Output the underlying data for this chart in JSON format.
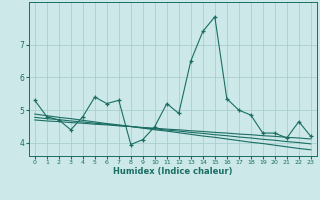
{
  "xlabel": "Humidex (Indice chaleur)",
  "background_color": "#cce8e8",
  "grid_color": "#aacece",
  "line_color": "#1a6e64",
  "x_values": [
    0,
    1,
    2,
    3,
    4,
    5,
    6,
    7,
    8,
    9,
    10,
    11,
    12,
    13,
    14,
    15,
    16,
    17,
    18,
    19,
    20,
    21,
    22,
    23
  ],
  "y_main": [
    5.3,
    4.8,
    4.7,
    4.4,
    4.8,
    5.4,
    5.2,
    5.3,
    3.95,
    4.1,
    4.5,
    5.2,
    4.9,
    6.5,
    7.4,
    7.85,
    5.35,
    5.0,
    4.85,
    4.3,
    4.3,
    4.15,
    4.65,
    4.2
  ],
  "y_trend1": [
    4.88,
    4.83,
    4.78,
    4.74,
    4.69,
    4.64,
    4.59,
    4.55,
    4.5,
    4.45,
    4.4,
    4.36,
    4.31,
    4.26,
    4.21,
    4.17,
    4.12,
    4.07,
    4.02,
    3.98,
    3.93,
    3.88,
    3.83,
    3.79
  ],
  "y_trend2": [
    4.78,
    4.74,
    4.71,
    4.67,
    4.64,
    4.6,
    4.57,
    4.53,
    4.5,
    4.46,
    4.43,
    4.39,
    4.36,
    4.32,
    4.29,
    4.25,
    4.22,
    4.18,
    4.15,
    4.11,
    4.08,
    4.04,
    4.01,
    3.97
  ],
  "y_trend3": [
    4.7,
    4.67,
    4.65,
    4.62,
    4.6,
    4.57,
    4.55,
    4.52,
    4.5,
    4.47,
    4.45,
    4.42,
    4.4,
    4.37,
    4.35,
    4.32,
    4.3,
    4.27,
    4.25,
    4.22,
    4.2,
    4.17,
    4.15,
    4.12
  ],
  "ylim": [
    3.6,
    8.3
  ],
  "yticks": [
    4,
    5,
    6,
    7
  ],
  "xlim": [
    -0.5,
    23.5
  ]
}
